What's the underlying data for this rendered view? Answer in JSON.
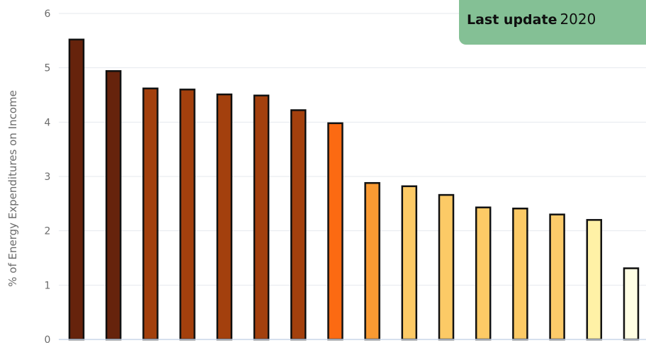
{
  "badge": {
    "label": "Last update",
    "year": "2020",
    "color": "#84c095"
  },
  "chart_data": {
    "type": "bar",
    "ylabel": "% of Energy Expenditures on Income",
    "xlabel": "",
    "ylim": [
      0,
      6
    ],
    "yticks": [
      "0",
      "1",
      "2",
      "3",
      "4",
      "5",
      "6"
    ],
    "grid": true,
    "values": [
      5.52,
      4.94,
      4.62,
      4.6,
      4.51,
      4.49,
      4.22,
      3.98,
      2.88,
      2.82,
      2.66,
      2.43,
      2.41,
      2.3,
      2.2,
      1.31
    ],
    "colors": [
      "#66230c",
      "#66230c",
      "#a3400d",
      "#a3400d",
      "#a3400d",
      "#a3400d",
      "#a3400d",
      "#fc6a12",
      "#f99a32",
      "#fcca66",
      "#fcca66",
      "#fcca66",
      "#fcca66",
      "#fccb6a",
      "#fff1a6",
      "#fffee4"
    ]
  }
}
